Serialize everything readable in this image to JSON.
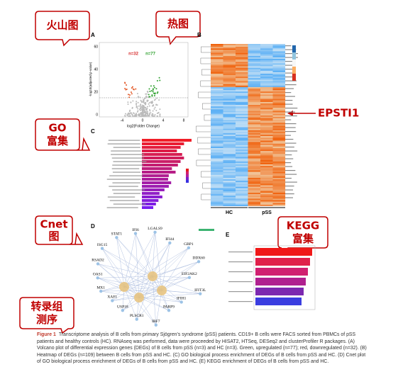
{
  "callouts": {
    "volcano": "火山图",
    "heatmap": "热图",
    "go": [
      "GO",
      "富集"
    ],
    "cnet": [
      "Cnet",
      "图"
    ],
    "kegg": [
      "KEGG",
      "富集"
    ],
    "rnaseq": [
      "转录组",
      "测序"
    ]
  },
  "gene_callout": "EPSTI1",
  "panels": {
    "A": {
      "label": "A",
      "down": "n=32",
      "up": "n=77",
      "xlabel": "log2(Folder Change)",
      "ylabel": "-log10(adjusted p-value)",
      "xticks": [
        -4,
        0,
        4,
        8
      ],
      "yticks": [
        0,
        20,
        40,
        60
      ]
    },
    "B": {
      "label": "B",
      "groups": [
        "HC",
        "pSS"
      ]
    },
    "C": {
      "label": "C"
    },
    "D": {
      "label": "D",
      "genes": [
        "LGALS9",
        "IFI44",
        "GBP1",
        "DDX60",
        "EIF2AK2",
        "IFIT3L",
        "IFIH1",
        "PARP9",
        "IRF7",
        "PLSCR1",
        "USP18",
        "XAF1",
        "MX1",
        "OAS1",
        "RSAD2",
        "ISG15",
        "STAT1",
        "IFI6"
      ]
    },
    "E": {
      "label": "E"
    }
  },
  "caption": {
    "label": "Figure 1",
    "text": "Transcriptome analysis of B cells from primary Sjögren's syndrome (pSS) patients. CD19+ B cells were FACS sorted from PBMCs of pSS patients and healthy controls (HC). RNAseq was performed, data were proceeded by HISAT2, HTSeq, DESeq2 and clusterProfiler R packages. (A) Volcano plot of differential expression genes (DEGs) of B cells from pSS (n=3) and HC (n=3). Green, upregulated (n=77); red, downregulated (n=32). (B) Heatmap of DEGs (n=109) between B cells from pSS and HC. (C) GO biological process enrichment of DEGs of B cells from pSS and HC. (D) Cnet plot of GO biological process enrichment of DEGs of B cells from pSS and HC. (E) KEGG enrichment of DEGs of B cells from pSS and HC."
  }
}
